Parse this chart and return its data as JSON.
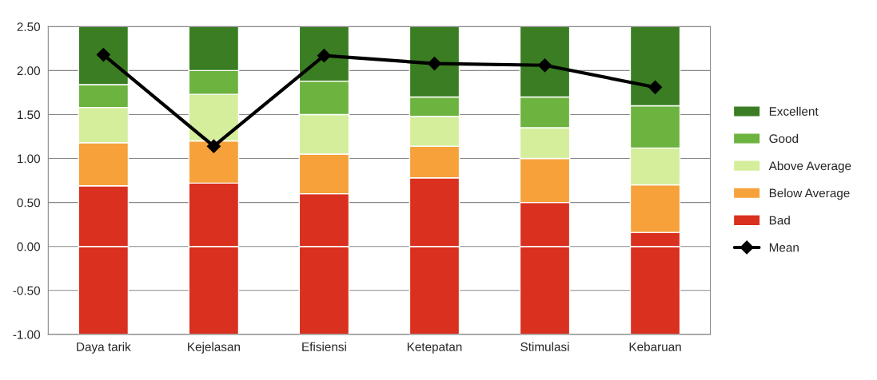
{
  "chart_data": {
    "type": "bar",
    "stacked": true,
    "categories": [
      "Daya tarik",
      "Kejelasan",
      "Efisiensi",
      "Ketepatan",
      "Stimulasi",
      "Kebaruan"
    ],
    "series": [
      {
        "color": "#d9301f",
        "values": [
          -1,
          -1,
          -1,
          -1,
          -1,
          -1
        ]
      },
      {
        "name": "Bad",
        "color": "#d9301f",
        "values": [
          0.69,
          0.72,
          0.6,
          0.78,
          0.5,
          0.16
        ]
      },
      {
        "name": "Below Average",
        "color": "#f6a13a",
        "values": [
          0.49,
          0.48,
          0.45,
          0.36,
          0.5,
          0.54
        ]
      },
      {
        "name": "Above Average",
        "color": "#d4ee9c",
        "values": [
          0.4,
          0.53,
          0.45,
          0.34,
          0.35,
          0.42
        ]
      },
      {
        "name": "Good",
        "color": "#6db33f",
        "values": [
          0.26,
          0.27,
          0.38,
          0.22,
          0.35,
          0.48
        ]
      },
      {
        "name": "Excellent",
        "color": "#3a7d22",
        "values": [
          0.66,
          0.5,
          0.62,
          0.8,
          0.8,
          0.9
        ]
      },
      {
        "name": "Mean",
        "type": "line",
        "color": "#000000",
        "marker": "diamond",
        "values": [
          2.18,
          1.14,
          2.17,
          2.08,
          2.06,
          1.81
        ]
      }
    ],
    "ylim": [
      -1,
      2.5
    ],
    "yticks": [
      {
        "value": -1,
        "label": "-1.00"
      },
      {
        "value": -0.5,
        "label": "-0.50"
      },
      {
        "value": 0,
        "label": "0.00"
      },
      {
        "value": 0.5,
        "label": "0.50"
      },
      {
        "value": 1,
        "label": "1.00"
      },
      {
        "value": 1.5,
        "label": "1.50"
      },
      {
        "value": 2,
        "label": "2.00"
      },
      {
        "value": 2.5,
        "label": "2.50"
      }
    ],
    "grid": "y",
    "legend": "right"
  }
}
